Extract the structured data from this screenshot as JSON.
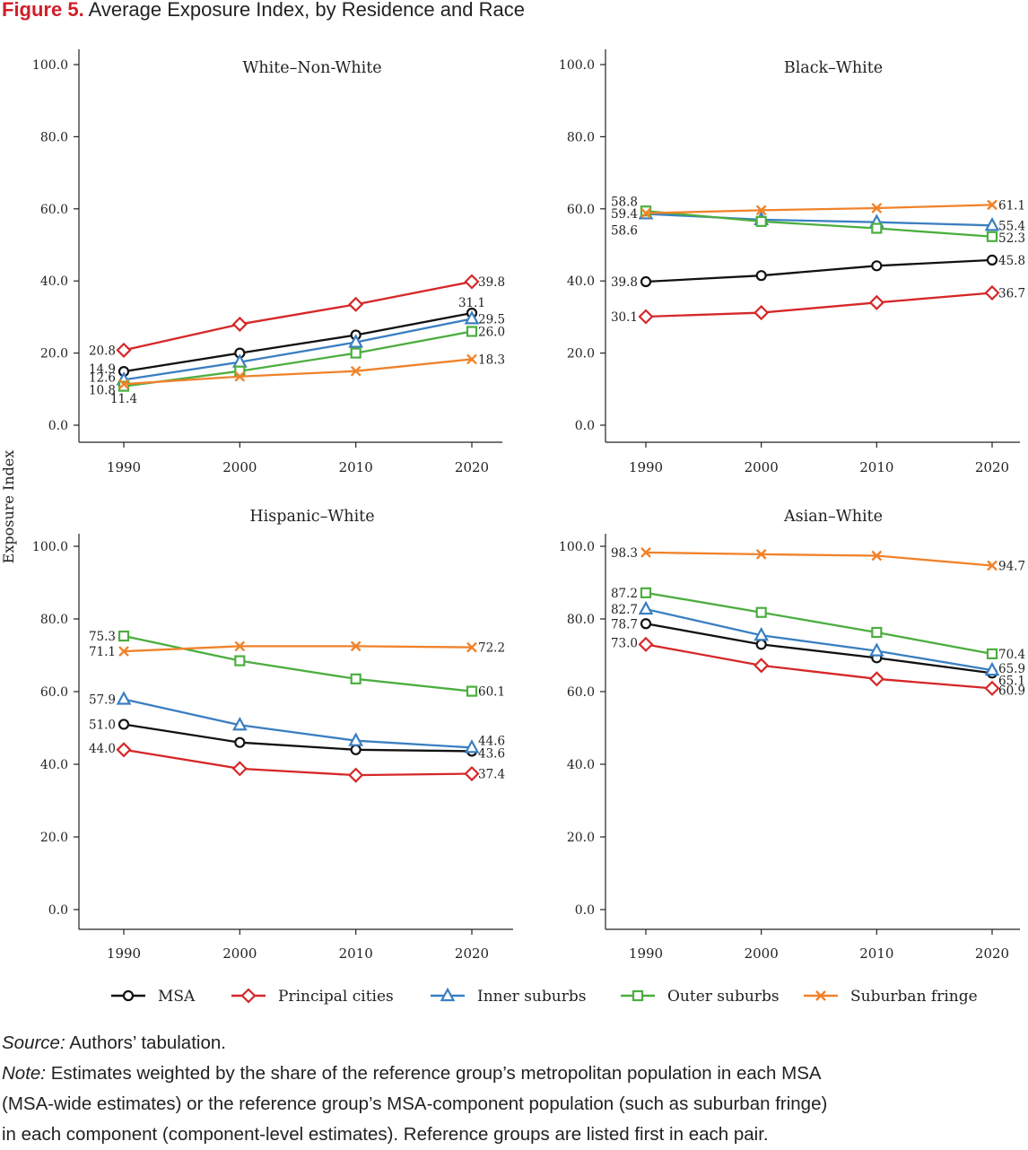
{
  "figure": {
    "label": "Figure 5.",
    "title": "Average Exposure Index, by Residence and Race"
  },
  "ylabel": "Exposure Index",
  "series_styles": [
    {
      "name": "MSA",
      "color": "#111111",
      "marker": "circle"
    },
    {
      "name": "Principal cities",
      "color": "#d62728",
      "marker": "diamond"
    },
    {
      "name": "Inner suburbs",
      "color": "#3a7fc1",
      "marker": "triangle"
    },
    {
      "name": "Outer suburbs",
      "color": "#4cae3f",
      "marker": "square"
    },
    {
      "name": "Suburban fringe",
      "color": "#f0822a",
      "marker": "x"
    }
  ],
  "chart_data": [
    {
      "type": "line",
      "title": "White–Non-White",
      "x": [
        1990,
        2000,
        2010,
        2020
      ],
      "ylim": [
        0,
        100
      ],
      "yticks": [
        "0.0",
        "20.0",
        "40.0",
        "60.0",
        "80.0",
        "100.0"
      ],
      "series": [
        {
          "name": "MSA",
          "values": [
            14.9,
            20.0,
            25.0,
            31.1
          ]
        },
        {
          "name": "Principal cities",
          "values": [
            20.8,
            28.0,
            33.5,
            39.8
          ]
        },
        {
          "name": "Inner suburbs",
          "values": [
            12.6,
            17.5,
            23.0,
            29.5
          ]
        },
        {
          "name": "Outer suburbs",
          "values": [
            10.8,
            15.0,
            20.0,
            26.0
          ]
        },
        {
          "name": "Suburban fringe",
          "values": [
            11.4,
            13.5,
            15.0,
            18.3
          ]
        }
      ],
      "labels": [
        {
          "text": "20.8",
          "s": 1,
          "i": 0,
          "pos": "left",
          "dy": 0
        },
        {
          "text": "14.9",
          "s": 0,
          "i": 0,
          "pos": "left",
          "dy": -3
        },
        {
          "text": "12.6",
          "s": 2,
          "i": 0,
          "pos": "left",
          "dy": -3
        },
        {
          "text": "10.8",
          "s": 3,
          "i": 0,
          "pos": "left",
          "dy": 4
        },
        {
          "text": "11.4",
          "s": 4,
          "i": 0,
          "pos": "below",
          "dy": 16
        },
        {
          "text": "39.8",
          "s": 1,
          "i": 3,
          "pos": "right",
          "dy": 0
        },
        {
          "text": "31.1",
          "s": 0,
          "i": 3,
          "pos": "above",
          "dy": -12
        },
        {
          "text": "29.5",
          "s": 2,
          "i": 3,
          "pos": "right",
          "dy": 0
        },
        {
          "text": "26.0",
          "s": 3,
          "i": 3,
          "pos": "right",
          "dy": 0
        },
        {
          "text": "18.3",
          "s": 4,
          "i": 3,
          "pos": "right",
          "dy": 0
        }
      ]
    },
    {
      "type": "line",
      "title": "Black–White",
      "x": [
        1990,
        2000,
        2010,
        2020
      ],
      "ylim": [
        0,
        100
      ],
      "yticks": [
        "0.0",
        "20.0",
        "40.0",
        "60.0",
        "80.0",
        "100.0"
      ],
      "series": [
        {
          "name": "MSA",
          "values": [
            39.8,
            41.5,
            44.2,
            45.8
          ]
        },
        {
          "name": "Principal cities",
          "values": [
            30.1,
            31.2,
            34.0,
            36.7
          ]
        },
        {
          "name": "Inner suburbs",
          "values": [
            58.6,
            57.0,
            56.3,
            55.4
          ]
        },
        {
          "name": "Outer suburbs",
          "values": [
            59.4,
            56.5,
            54.6,
            52.3
          ]
        },
        {
          "name": "Suburban fringe",
          "values": [
            58.8,
            59.6,
            60.2,
            61.1
          ]
        }
      ],
      "labels": [
        {
          "text": "58.8",
          "s": 4,
          "i": 0,
          "pos": "left",
          "dy": -13
        },
        {
          "text": "59.4",
          "s": 3,
          "i": 0,
          "pos": "left",
          "dy": 3
        },
        {
          "text": "58.6",
          "s": 2,
          "i": 0,
          "pos": "left",
          "dy": 18
        },
        {
          "text": "39.8",
          "s": 0,
          "i": 0,
          "pos": "left",
          "dy": 0
        },
        {
          "text": "30.1",
          "s": 1,
          "i": 0,
          "pos": "left",
          "dy": 0
        },
        {
          "text": "61.1",
          "s": 4,
          "i": 3,
          "pos": "right",
          "dy": 0
        },
        {
          "text": "55.4",
          "s": 2,
          "i": 3,
          "pos": "right",
          "dy": 0
        },
        {
          "text": "52.3",
          "s": 3,
          "i": 3,
          "pos": "right",
          "dy": 1
        },
        {
          "text": "45.8",
          "s": 0,
          "i": 3,
          "pos": "right",
          "dy": 0
        },
        {
          "text": "36.7",
          "s": 1,
          "i": 3,
          "pos": "right",
          "dy": 0
        }
      ]
    },
    {
      "type": "line",
      "title": "Hispanic–White",
      "x": [
        1990,
        2000,
        2010,
        2020
      ],
      "ylim": [
        0,
        100
      ],
      "yticks": [
        "0.0",
        "20.0",
        "40.0",
        "60.0",
        "80.0",
        "100.0"
      ],
      "series": [
        {
          "name": "MSA",
          "values": [
            51.0,
            46.0,
            44.0,
            43.6
          ]
        },
        {
          "name": "Principal cities",
          "values": [
            44.0,
            38.8,
            37.0,
            37.4
          ]
        },
        {
          "name": "Inner suburbs",
          "values": [
            57.9,
            50.8,
            46.5,
            44.6
          ]
        },
        {
          "name": "Outer suburbs",
          "values": [
            75.3,
            68.5,
            63.5,
            60.1
          ]
        },
        {
          "name": "Suburban fringe",
          "values": [
            71.1,
            72.5,
            72.5,
            72.2
          ]
        }
      ],
      "labels": [
        {
          "text": "75.3",
          "s": 3,
          "i": 0,
          "pos": "left",
          "dy": 0
        },
        {
          "text": "71.1",
          "s": 4,
          "i": 0,
          "pos": "left",
          "dy": 0
        },
        {
          "text": "57.9",
          "s": 2,
          "i": 0,
          "pos": "left",
          "dy": 0
        },
        {
          "text": "51.0",
          "s": 0,
          "i": 0,
          "pos": "left",
          "dy": 0
        },
        {
          "text": "44.0",
          "s": 1,
          "i": 0,
          "pos": "left",
          "dy": -2
        },
        {
          "text": "72.2",
          "s": 4,
          "i": 3,
          "pos": "right",
          "dy": 0
        },
        {
          "text": "60.1",
          "s": 3,
          "i": 3,
          "pos": "right",
          "dy": 0
        },
        {
          "text": "44.6",
          "s": 2,
          "i": 3,
          "pos": "right",
          "dy": -8
        },
        {
          "text": "43.6",
          "s": 0,
          "i": 3,
          "pos": "right",
          "dy": 2
        },
        {
          "text": "37.4",
          "s": 1,
          "i": 3,
          "pos": "right",
          "dy": 0
        }
      ]
    },
    {
      "type": "line",
      "title": "Asian–White",
      "x": [
        1990,
        2000,
        2010,
        2020
      ],
      "ylim": [
        0,
        100
      ],
      "yticks": [
        "0.0",
        "20.0",
        "40.0",
        "60.0",
        "80.0",
        "100.0"
      ],
      "series": [
        {
          "name": "MSA",
          "values": [
            78.7,
            73.0,
            69.3,
            65.1
          ]
        },
        {
          "name": "Principal cities",
          "values": [
            73.0,
            67.2,
            63.5,
            60.9
          ]
        },
        {
          "name": "Inner suburbs",
          "values": [
            82.7,
            75.5,
            71.2,
            65.9
          ]
        },
        {
          "name": "Outer suburbs",
          "values": [
            87.2,
            81.8,
            76.3,
            70.4
          ]
        },
        {
          "name": "Suburban fringe",
          "values": [
            98.3,
            97.8,
            97.4,
            94.7
          ]
        }
      ],
      "labels": [
        {
          "text": "98.3",
          "s": 4,
          "i": 0,
          "pos": "left",
          "dy": 0
        },
        {
          "text": "87.2",
          "s": 3,
          "i": 0,
          "pos": "left",
          "dy": 0
        },
        {
          "text": "82.7",
          "s": 2,
          "i": 0,
          "pos": "left",
          "dy": 0
        },
        {
          "text": "78.7",
          "s": 0,
          "i": 0,
          "pos": "left",
          "dy": 0
        },
        {
          "text": "73.0",
          "s": 1,
          "i": 0,
          "pos": "left",
          "dy": -2
        },
        {
          "text": "94.7",
          "s": 4,
          "i": 3,
          "pos": "right",
          "dy": 0
        },
        {
          "text": "70.4",
          "s": 3,
          "i": 3,
          "pos": "right",
          "dy": 0
        },
        {
          "text": "65.9",
          "s": 2,
          "i": 3,
          "pos": "right",
          "dy": -2
        },
        {
          "text": "65.1",
          "s": 0,
          "i": 3,
          "pos": "right",
          "dy": 8
        },
        {
          "text": "60.9",
          "s": 1,
          "i": 3,
          "pos": "right",
          "dy": 2
        }
      ]
    }
  ],
  "legend": {
    "items": [
      "MSA",
      "Principal cities",
      "Inner suburbs",
      "Outer suburbs",
      "Suburban fringe"
    ]
  },
  "footer": {
    "source_label": "Source:",
    "source_text": " Authors’ tabulation.",
    "note_label": "Note:",
    "note_line1": " Estimates weighted by the share of the reference group’s metropolitan population in each MSA",
    "note_line2": "(MSA-wide estimates) or the reference group’s MSA-component population (such as suburban fringe)",
    "note_line3": "in each component (component-level estimates). Reference groups are listed first in each pair."
  }
}
